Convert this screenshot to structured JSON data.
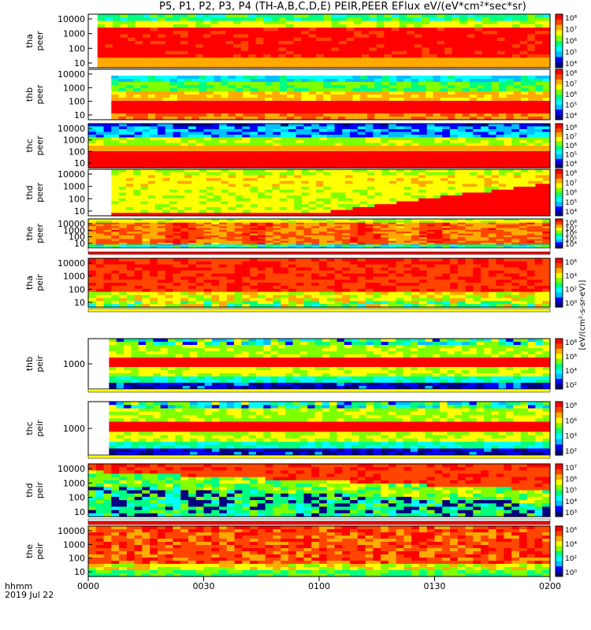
{
  "title": "P5, P1, P2, P3, P4 (TH-A,B,C,D,E) PEIR,PEER EFlux eV/(eV*cm²*sec*sr)",
  "x_axis": {
    "corner_labels": [
      "hhmm",
      "2019 Jul 22"
    ],
    "ticks": [
      "0000",
      "0030",
      "0100",
      "0130",
      "0200"
    ]
  },
  "colorbar_title": "[eV/(cm²-s-sr-eV)]",
  "colorbar_unit_fragment": "eV/(cm²-sec-sr-eV)",
  "colors": {
    "scale": [
      "#000080",
      "#0000ff",
      "#00bfff",
      "#00ffff",
      "#00ff7f",
      "#7fff00",
      "#ffff00",
      "#ffaa00",
      "#ff4500",
      "#ff0000"
    ],
    "fill_bar_white": "#ffffff",
    "fill_bar_yellow": "#ffff00",
    "fill_bar_red": "#ff0000"
  },
  "chart_data": [
    {
      "type": "heatmap",
      "probe": "tha",
      "species": "peer",
      "ylabels": [
        "tha",
        "peer"
      ],
      "yticks": [
        "10000",
        "1000",
        "100",
        "10"
      ],
      "cbar_ticks": [
        "10⁸",
        "10⁷",
        "10⁶",
        "10⁵",
        "10⁴"
      ],
      "data_start": 0.02
    },
    {
      "type": "heatmap",
      "probe": "thb",
      "species": "peer",
      "ylabels": [
        "thb",
        "peer"
      ],
      "yticks": [
        "10000",
        "1000",
        "100",
        "10"
      ],
      "cbar_ticks": [
        "10⁸",
        "10⁷",
        "10⁶",
        "10⁵",
        "10⁴"
      ],
      "data_start": 0.05
    },
    {
      "type": "heatmap",
      "probe": "thc",
      "species": "peer",
      "ylabels": [
        "thc",
        "peer"
      ],
      "yticks": [
        "10000",
        "1000",
        "100",
        "10"
      ],
      "cbar_ticks": [
        "10⁸",
        "10⁷",
        "10⁶",
        "10⁵",
        "10⁴"
      ],
      "data_start": 0.0
    },
    {
      "type": "heatmap",
      "probe": "thd",
      "species": "peer",
      "ylabels": [
        "thd",
        "peer"
      ],
      "yticks": [
        "10000",
        "1000",
        "100",
        "10"
      ],
      "cbar_ticks": [
        "10⁸",
        "10⁷",
        "10⁶",
        "10⁵",
        "10⁴"
      ],
      "data_start": 0.05
    },
    {
      "type": "heatmap",
      "probe": "the",
      "species": "peer",
      "ylabels": [
        "the",
        "peer"
      ],
      "yticks": [
        "10000",
        "1000",
        "100",
        "10"
      ],
      "cbar_ticks": [
        "10⁸",
        "10⁷",
        "10⁶",
        "10⁵",
        "10⁴"
      ],
      "data_start": 0.0
    },
    {
      "type": "heatmap",
      "probe": "tha",
      "species": "peir",
      "ylabels": [
        "tha",
        "peir"
      ],
      "yticks": [
        "10000",
        "1000",
        "100",
        "10"
      ],
      "cbar_ticks": [
        "10⁶",
        "10⁴",
        "10²",
        "10⁰"
      ],
      "data_start": 0.0
    },
    {
      "type": "heatmap",
      "probe": "thb",
      "species": "peir",
      "ylabels": [
        "thb",
        "peir"
      ],
      "yticks": [
        "1000"
      ],
      "cbar_ticks": [
        "10⁸",
        "10⁶",
        "10⁴",
        "10²"
      ],
      "data_start": 0.045
    },
    {
      "type": "heatmap",
      "probe": "thc",
      "species": "peir",
      "ylabels": [
        "thc",
        "peir"
      ],
      "yticks": [
        "1000"
      ],
      "cbar_ticks": [
        "10⁸",
        "10⁶",
        "10⁴",
        "10²"
      ],
      "data_start": 0.045
    },
    {
      "type": "heatmap",
      "probe": "thd",
      "species": "peir",
      "ylabels": [
        "thd",
        "peir"
      ],
      "yticks": [
        "10000",
        "1000",
        "100",
        "10"
      ],
      "cbar_ticks": [
        "10⁷",
        "10⁶",
        "10⁵",
        "10⁴",
        "10³"
      ],
      "data_start": 0.0
    },
    {
      "type": "heatmap",
      "probe": "the",
      "species": "peir",
      "ylabels": [
        "the",
        "peir"
      ],
      "yticks": [
        "10000",
        "1000",
        "100",
        "10"
      ],
      "cbar_ticks": [
        "10⁶",
        "10⁴",
        "10²",
        "10⁰"
      ],
      "data_start": 0.0
    }
  ]
}
